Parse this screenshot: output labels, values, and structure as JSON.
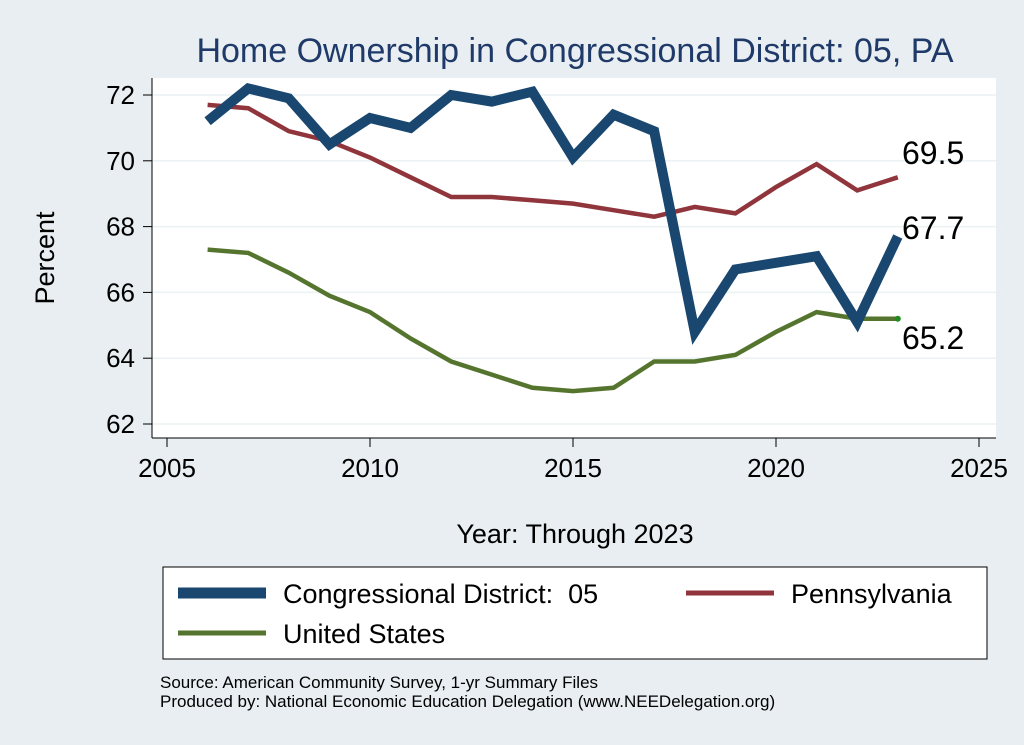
{
  "chart_data": {
    "type": "line",
    "title": "Home Ownership in Congressional District:  05, PA",
    "xlabel": "Year: Through 2023",
    "ylabel": "Percent",
    "xlim": [
      2005,
      2025
    ],
    "ylim": [
      62,
      72.8
    ],
    "x_ticks": [
      "2005",
      "2010",
      "2015",
      "2020",
      "2025"
    ],
    "y_ticks": [
      "62",
      "64",
      "66",
      "68",
      "70",
      "72"
    ],
    "grid": true,
    "legend_position": "bottom",
    "x": [
      2006,
      2007,
      2008,
      2009,
      2010,
      2011,
      2012,
      2013,
      2014,
      2015,
      2016,
      2017,
      2018,
      2019,
      2020,
      2021,
      2022,
      2023
    ],
    "series": [
      {
        "name": "Congressional District:  05",
        "color": "#1a476f",
        "values": [
          71.2,
          72.2,
          71.9,
          70.5,
          71.3,
          71.0,
          72.0,
          71.8,
          72.1,
          70.1,
          71.4,
          70.9,
          64.8,
          66.7,
          66.9,
          67.1,
          65.1,
          67.7
        ],
        "end_label": "67.7"
      },
      {
        "name": "Pennsylvania",
        "color": "#90353b",
        "values": [
          71.7,
          71.6,
          70.9,
          70.6,
          70.1,
          69.5,
          68.9,
          68.9,
          68.8,
          68.7,
          68.5,
          68.3,
          68.6,
          68.4,
          69.2,
          69.9,
          69.1,
          69.5
        ],
        "end_label": "69.5"
      },
      {
        "name": "United States",
        "color": "#55752f",
        "values": [
          67.3,
          67.2,
          66.6,
          65.9,
          65.4,
          64.6,
          63.9,
          63.5,
          63.1,
          63.0,
          63.1,
          63.9,
          63.9,
          64.1,
          64.8,
          65.4,
          65.2,
          65.2
        ],
        "end_label": "65.2"
      }
    ]
  },
  "source": {
    "line1": "Source: American Community Survey, 1-yr Summary Files",
    "line2": "Produced by: National Economic Education Delegation (www.NEEDelegation.org)"
  }
}
